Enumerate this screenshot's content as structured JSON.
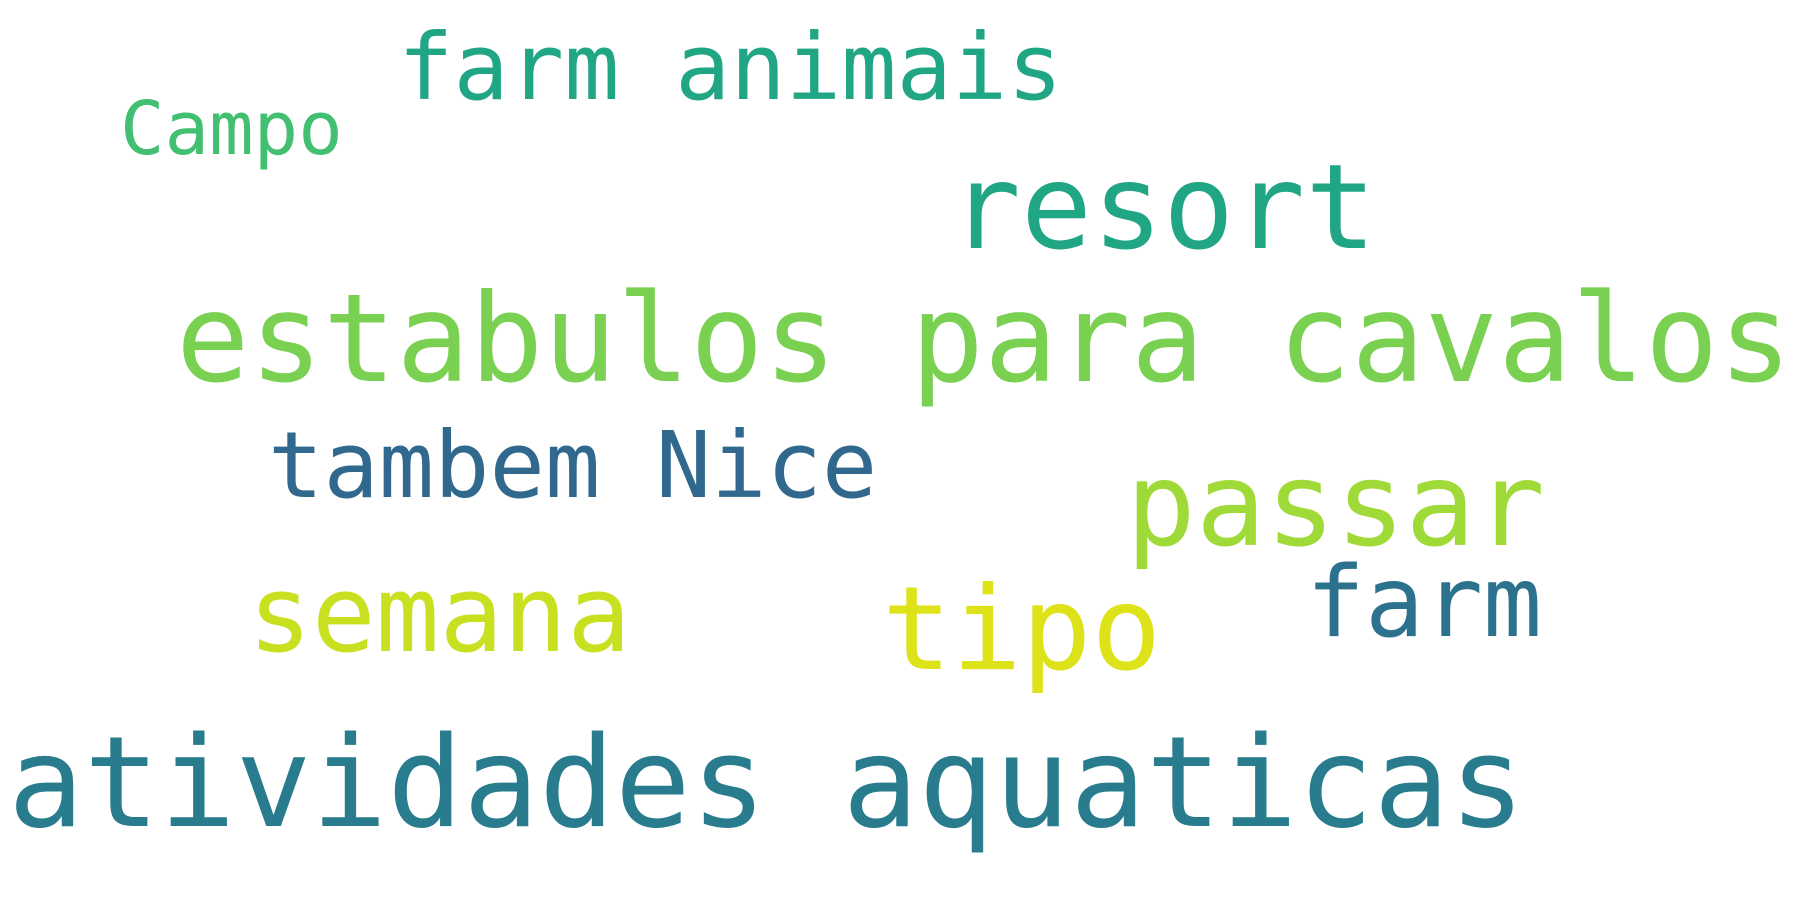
{
  "wordcloud": {
    "words": [
      {
        "text": "Campo",
        "color": "#43bf71"
      },
      {
        "text": "farm animais",
        "color": "#21a685"
      },
      {
        "text": "resort",
        "color": "#21a685"
      },
      {
        "text": "estabulos para cavalos",
        "color": "#7ad151"
      },
      {
        "text": "tambem Nice",
        "color": "#31688e"
      },
      {
        "text": "passar",
        "color": "#a0da39"
      },
      {
        "text": "semana",
        "color": "#c8e020"
      },
      {
        "text": "tipo",
        "color": "#dde318"
      },
      {
        "text": "farm",
        "color": "#2c728e"
      },
      {
        "text": "atividades aquaticas",
        "color": "#287c8e"
      }
    ]
  }
}
